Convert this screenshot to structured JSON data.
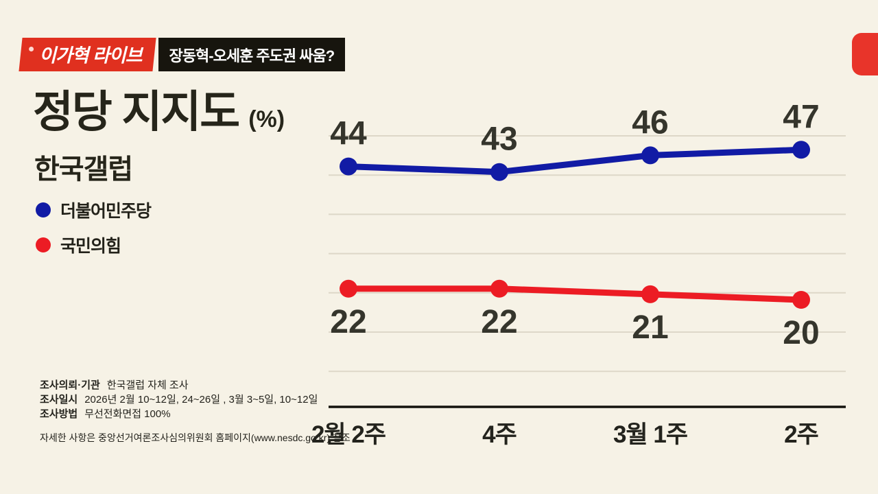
{
  "header": {
    "live_badge": "이가혁 라이브",
    "topic_badge": "장동혁-오세훈 주도권 싸움?"
  },
  "title": {
    "main": "정당 지지도",
    "unit": "(%)",
    "source": "한국갤럽"
  },
  "legend": [
    {
      "label": "더불어민주당",
      "color": "#111ba5"
    },
    {
      "label": "국민의힘",
      "color": "#ec1c24"
    }
  ],
  "chart_data": {
    "type": "line",
    "categories": [
      "2월 2주",
      "4주",
      "3월 1주",
      "2주"
    ],
    "series": [
      {
        "name": "더불어민주당",
        "color": "#111ba5",
        "values": [
          44,
          43,
          46,
          47
        ],
        "label_position": "above"
      },
      {
        "name": "국민의힘",
        "color": "#ec1c24",
        "values": [
          22,
          22,
          21,
          20
        ],
        "label_position": "below"
      }
    ],
    "title": "정당 지지도 (%)",
    "xlabel": "",
    "ylabel": "%",
    "ylim": [
      0,
      55
    ],
    "grid": true,
    "legend_position": "left"
  },
  "footnotes": [
    {
      "label": "조사의뢰·기관",
      "text": "한국갤럽 자체 조사"
    },
    {
      "label": "조사일시",
      "text": "2026년 2월 10~12일, 24~26일 , 3월 3~5일, 10~12일"
    },
    {
      "label": "조사방법",
      "text": "무선전화면접 100%"
    }
  ],
  "disclaimer": "자세한 사항은 중앙선거여론조사심의위원회 홈페이지(www.nesdc.go.kr) 참조",
  "colors": {
    "background": "#f6f2e6",
    "live_badge": "#e0301f",
    "topic_badge": "#17150e",
    "series_blue": "#111ba5",
    "series_red": "#ec1c24",
    "axis": "#14130d",
    "gridline": "#ddd7c8",
    "text": "#26251a"
  }
}
